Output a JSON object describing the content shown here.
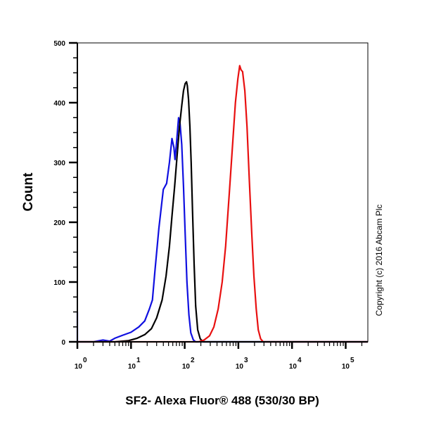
{
  "chart_data": {
    "type": "line",
    "title": "",
    "xlabel": "SF2- Alexa Fluor® 488 (530/30 BP)",
    "ylabel": "Count",
    "xscale": "log",
    "xlim": [
      0.65,
      350000
    ],
    "ylim": [
      0,
      500
    ],
    "x_ticks": [
      "10^0",
      "10^1",
      "10^2",
      "10^3",
      "10^4",
      "10^5"
    ],
    "y_ticks": [
      0,
      100,
      200,
      300,
      400,
      500
    ],
    "grid": false,
    "legend": null,
    "annotation": "Copyright (c) 2016 Abcam Plc",
    "series": [
      {
        "name": "blue",
        "color": "#1010e0",
        "points": [
          [
            0.65,
            50
          ],
          [
            0.7,
            20
          ],
          [
            0.75,
            2
          ],
          [
            0.85,
            0
          ],
          [
            2,
            0
          ],
          [
            3,
            3
          ],
          [
            4,
            1
          ],
          [
            5,
            6
          ],
          [
            7,
            11
          ],
          [
            10,
            16
          ],
          [
            14,
            25
          ],
          [
            18,
            35
          ],
          [
            22,
            55
          ],
          [
            25,
            70
          ],
          [
            28,
            120
          ],
          [
            33,
            190
          ],
          [
            40,
            255
          ],
          [
            46,
            265
          ],
          [
            52,
            300
          ],
          [
            58,
            340
          ],
          [
            63,
            325
          ],
          [
            66,
            305
          ],
          [
            70,
            330
          ],
          [
            77,
            375
          ],
          [
            82,
            365
          ],
          [
            88,
            330
          ],
          [
            95,
            260
          ],
          [
            102,
            180
          ],
          [
            110,
            100
          ],
          [
            120,
            45
          ],
          [
            130,
            15
          ],
          [
            145,
            3
          ],
          [
            160,
            0
          ],
          [
            350000,
            0
          ]
        ]
      },
      {
        "name": "black",
        "color": "#000000",
        "points": [
          [
            0.65,
            0
          ],
          [
            5,
            0
          ],
          [
            9,
            2
          ],
          [
            13,
            6
          ],
          [
            18,
            12
          ],
          [
            24,
            22
          ],
          [
            30,
            40
          ],
          [
            38,
            70
          ],
          [
            45,
            110
          ],
          [
            52,
            160
          ],
          [
            58,
            210
          ],
          [
            65,
            260
          ],
          [
            72,
            310
          ],
          [
            80,
            360
          ],
          [
            88,
            395
          ],
          [
            95,
            420
          ],
          [
            102,
            432
          ],
          [
            108,
            435
          ],
          [
            112,
            428
          ],
          [
            118,
            405
          ],
          [
            125,
            360
          ],
          [
            132,
            300
          ],
          [
            140,
            220
          ],
          [
            150,
            130
          ],
          [
            160,
            60
          ],
          [
            175,
            20
          ],
          [
            195,
            5
          ],
          [
            220,
            0
          ],
          [
            350000,
            0
          ]
        ]
      },
      {
        "name": "red",
        "color": "#e81010",
        "points": [
          [
            0.65,
            0
          ],
          [
            180,
            0
          ],
          [
            230,
            3
          ],
          [
            290,
            10
          ],
          [
            350,
            25
          ],
          [
            420,
            55
          ],
          [
            500,
            100
          ],
          [
            580,
            160
          ],
          [
            680,
            250
          ],
          [
            780,
            330
          ],
          [
            880,
            400
          ],
          [
            980,
            440
          ],
          [
            1060,
            462
          ],
          [
            1120,
            455
          ],
          [
            1200,
            452
          ],
          [
            1320,
            420
          ],
          [
            1450,
            360
          ],
          [
            1600,
            270
          ],
          [
            1780,
            180
          ],
          [
            1950,
            110
          ],
          [
            2150,
            55
          ],
          [
            2350,
            20
          ],
          [
            2600,
            5
          ],
          [
            2900,
            0
          ],
          [
            350000,
            0
          ]
        ]
      }
    ]
  },
  "labels": {
    "ylabel": "Count",
    "xlabel": "SF2- Alexa Fluor® 488 (530/30 BP)",
    "copyright": "Copyright (c) 2016 Abcam Plc",
    "y_ticks": [
      "0",
      "100",
      "200",
      "300",
      "400",
      "500"
    ],
    "x_tick_base": [
      "10",
      "10",
      "10",
      "10",
      "10",
      "10"
    ],
    "x_tick_exp": [
      "0",
      "1",
      "2",
      "3",
      "4",
      "5"
    ]
  }
}
